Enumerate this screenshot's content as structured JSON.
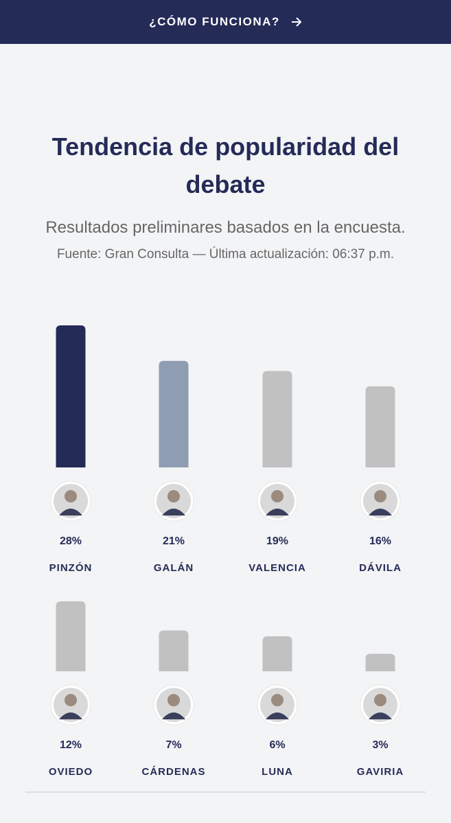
{
  "header": {
    "link": "¿CÓMO FUNCIONA?"
  },
  "title": "Tendencia de popularidad del debate",
  "subtitle": "Resultados preliminares basados en la encuesta.",
  "source": "Fuente: Gran Consulta — Última actualización: 06:37 p.m.",
  "chart_data": [
    {
      "type": "bar",
      "categories": [
        "PINZÓN",
        "GALÁN",
        "VALENCIA",
        "DÁVILA"
      ],
      "values": [
        28,
        21,
        19,
        16
      ],
      "value_labels": [
        "28%",
        "21%",
        "19%",
        "16%"
      ],
      "colors": [
        "#252b57",
        "#8f9db3",
        "#c1c1c1",
        "#c1c1c1"
      ]
    },
    {
      "type": "bar",
      "categories": [
        "OVIEDO",
        "CÁRDENAS",
        "LUNA",
        "GAVIRIA"
      ],
      "values": [
        12,
        7,
        6,
        3
      ],
      "value_labels": [
        "12%",
        "7%",
        "6%",
        "3%"
      ],
      "colors": [
        "#c1c1c1",
        "#c1c1c1",
        "#c1c1c1",
        "#c1c1c1"
      ]
    }
  ]
}
